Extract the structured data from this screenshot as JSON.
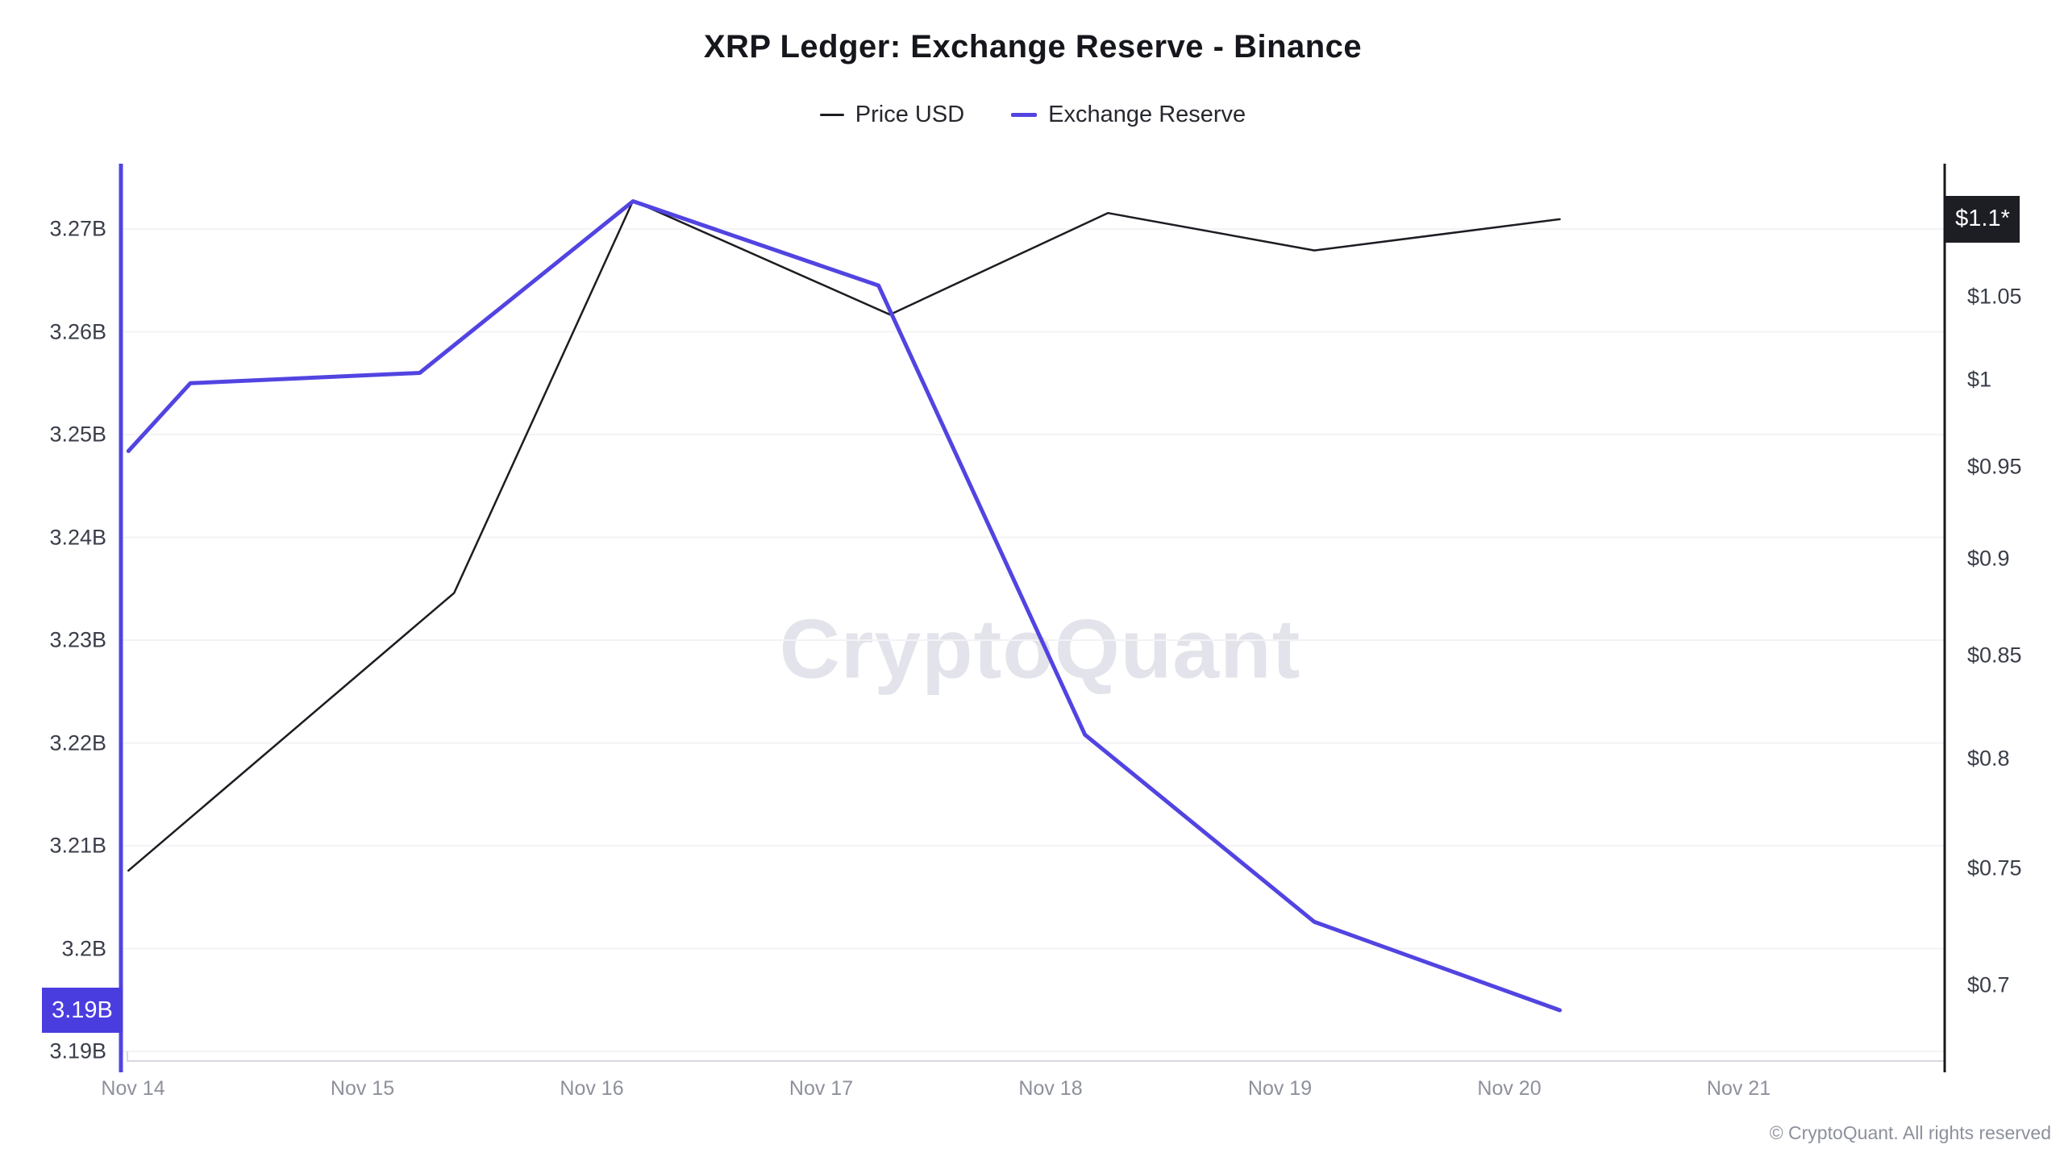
{
  "chart_data": {
    "type": "line",
    "title": "XRP Ledger: Exchange Reserve - Binance",
    "watermark": "CryptoQuant",
    "copyright": "© CryptoQuant. All rights reserved",
    "legend": [
      {
        "label": "Price USD",
        "color": "#1c1c22"
      },
      {
        "label": "Exchange Reserve",
        "color": "#5244e1"
      }
    ],
    "x_axis": {
      "unit": "date",
      "tick_labels": [
        "Nov 14",
        "Nov 15",
        "Nov 16",
        "Nov 17",
        "Nov 18",
        "Nov 19",
        "Nov 20",
        "Nov 21"
      ]
    },
    "left_axis": {
      "series": "Exchange Reserve",
      "unit": "XRP (billions)",
      "color": "#5244e1",
      "tick_labels": [
        "3.27B",
        "3.26B",
        "3.25B",
        "3.24B",
        "3.23B",
        "3.22B",
        "3.21B",
        "3.2B",
        "3.19B"
      ],
      "tick_values": [
        3.27,
        3.26,
        3.25,
        3.24,
        3.23,
        3.22,
        3.21,
        3.2,
        3.19
      ],
      "current_value_badge": "3.19B"
    },
    "right_axis": {
      "series": "Price USD",
      "unit": "USD",
      "scale": "log",
      "color": "#17181d",
      "tick_labels": [
        "$1.05",
        "$1",
        "$0.95",
        "$0.9",
        "$0.85",
        "$0.8",
        "$0.75",
        "$0.7"
      ],
      "tick_values": [
        1.05,
        1.0,
        0.95,
        0.9,
        0.85,
        0.8,
        0.75,
        0.7
      ],
      "current_value_badge": "$1.1*"
    },
    "x_unit": "days since Nov 14",
    "series": [
      {
        "name": "Price USD",
        "axis": "right",
        "color": "#1c1c22",
        "stroke_width": 2.5,
        "points": [
          [
            -0.02,
            0.749
          ],
          [
            1.4,
            0.882
          ],
          [
            2.18,
            1.111
          ],
          [
            3.3,
            1.039
          ],
          [
            4.25,
            1.103
          ],
          [
            5.15,
            1.079
          ],
          [
            6.22,
            1.099
          ]
        ]
      },
      {
        "name": "Exchange Reserve",
        "axis": "left",
        "color": "#5244e1",
        "stroke_width": 5,
        "points": [
          [
            -0.02,
            3.2484
          ],
          [
            0.25,
            3.255
          ],
          [
            1.25,
            3.256
          ],
          [
            2.18,
            3.2727
          ],
          [
            3.25,
            3.2645
          ],
          [
            4.15,
            3.2208
          ],
          [
            5.15,
            3.2026
          ],
          [
            6.22,
            3.194
          ]
        ]
      }
    ]
  }
}
